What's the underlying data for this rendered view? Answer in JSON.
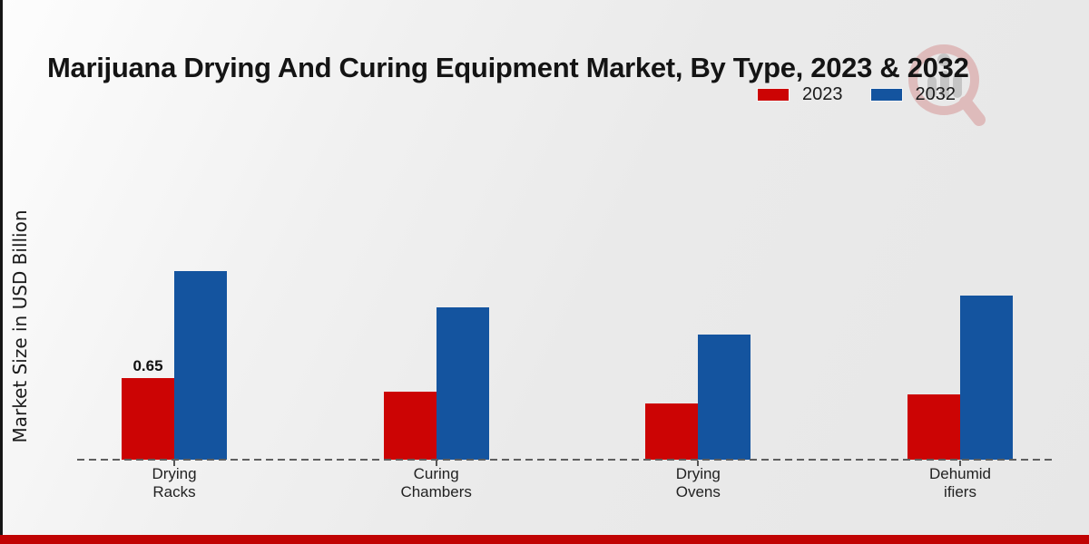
{
  "page": {
    "title": "Marijuana Drying And Curing Equipment Market, By Type, 2023 & 2032",
    "ylabel": "Market Size in USD Billion"
  },
  "legend": {
    "items": [
      {
        "label": "2023",
        "color": "#cc0404"
      },
      {
        "label": "2032",
        "color": "#14549f"
      }
    ]
  },
  "watermark": {
    "icon": "magnifier-research-logo"
  },
  "footer": {
    "band_color": "#c00303"
  },
  "chart_data": {
    "type": "bar",
    "title": "Marijuana Drying And Curing Equipment Market, By Type, 2023 & 2032",
    "xlabel": "",
    "ylabel": "Market Size in USD Billion",
    "categories": [
      "Drying Racks",
      "Curing Chambers",
      "Drying Ovens",
      "Dehumidifiers"
    ],
    "category_label_lines": [
      [
        "Drying",
        "Racks"
      ],
      [
        "Curing",
        "Chambers"
      ],
      [
        "Drying",
        "Ovens"
      ],
      [
        "Dehumid",
        "ifiers"
      ]
    ],
    "series": [
      {
        "name": "2023",
        "color": "#cc0404",
        "values": [
          0.65,
          0.54,
          0.45,
          0.52
        ],
        "data_labels": [
          "0.65",
          "",
          "",
          ""
        ]
      },
      {
        "name": "2032",
        "color": "#14549f",
        "values": [
          1.5,
          1.21,
          1.0,
          1.31
        ],
        "data_labels": [
          "",
          "",
          "",
          ""
        ]
      }
    ],
    "ylim": [
      0,
      1.6
    ],
    "grid": false,
    "legend_position": "top-right",
    "baseline_style": "dashed",
    "y_axis_ticks_visible": false
  }
}
